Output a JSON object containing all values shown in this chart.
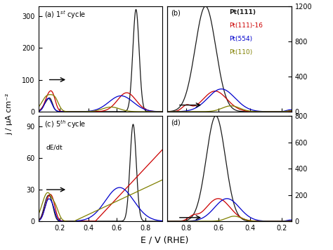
{
  "colors": {
    "Pt111": "#1a1a1a",
    "Pt111_16": "#cc0000",
    "Pt554": "#0000cc",
    "Pt110": "#808000"
  },
  "legend_labels": [
    "Pt(111)",
    "Pt(111)-16",
    "Pt(554)",
    "Pt(110)"
  ],
  "xlabel": "E / V (RHE)",
  "ylabel": "j / μA cm⁻²",
  "panel_labels": [
    "(a) 1$^{st}$ cycle",
    "(b)",
    "(c) 5$^{th}$ cycle",
    "(d)"
  ]
}
